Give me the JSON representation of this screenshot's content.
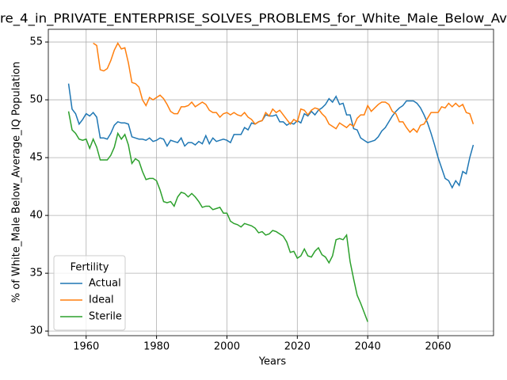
{
  "chart_data": {
    "type": "line",
    "title": "re_4_in_PRIVATE_ENTERPRISE_SOLVES_PROBLEMS_for_White_Male_Below_Av",
    "x_label": "Years",
    "y_label": "% of White_Male Below_Average_IQ Population",
    "x": [
      1955,
      1956,
      1957,
      1958,
      1959,
      1960,
      1961,
      1962,
      1963,
      1964,
      1965,
      1966,
      1967,
      1968,
      1969,
      1970,
      1971,
      1972,
      1973,
      1974,
      1975,
      1976,
      1977,
      1978,
      1979,
      1980,
      1981,
      1982,
      1983,
      1984,
      1985,
      1986,
      1987,
      1988,
      1989,
      1990,
      1991,
      1992,
      1993,
      1994,
      1995,
      1996,
      1997,
      1998,
      1999,
      2000,
      2001,
      2002,
      2003,
      2004,
      2005,
      2006,
      2007,
      2008,
      2009,
      2010,
      2011,
      2012,
      2013,
      2014,
      2015,
      2016,
      2017,
      2018,
      2019,
      2020,
      2021,
      2022,
      2023,
      2024,
      2025,
      2026,
      2027,
      2028,
      2029,
      2030,
      2031,
      2032,
      2033,
      2034,
      2035,
      2036,
      2037,
      2038,
      2039,
      2040,
      2041,
      2042,
      2043,
      2044,
      2045,
      2046,
      2047,
      2048,
      2049,
      2050,
      2051,
      2052,
      2053,
      2054,
      2055,
      2056,
      2057,
      2058,
      2059,
      2060,
      2061,
      2062,
      2063,
      2064,
      2065,
      2066,
      2067,
      2068,
      2069,
      2070
    ],
    "series": [
      {
        "name": "Actual",
        "color": "#1f77b4",
        "values": [
          51.4,
          49.2,
          48.8,
          47.9,
          48.3,
          48.8,
          48.6,
          48.9,
          48.5,
          46.7,
          46.7,
          46.6,
          47.1,
          47.8,
          48.1,
          48.0,
          48.0,
          47.9,
          46.8,
          46.7,
          46.6,
          46.6,
          46.5,
          46.7,
          46.4,
          46.5,
          46.7,
          46.6,
          46.0,
          46.5,
          46.4,
          46.3,
          46.7,
          46.0,
          46.3,
          46.3,
          46.1,
          46.4,
          46.2,
          46.9,
          46.2,
          46.7,
          46.4,
          46.5,
          46.6,
          46.5,
          46.3,
          47.0,
          47.0,
          47.0,
          47.6,
          47.4,
          48.0,
          47.9,
          48.1,
          48.2,
          48.7,
          48.6,
          48.6,
          48.7,
          48.1,
          48.1,
          47.8,
          48.0,
          47.9,
          48.2,
          48.0,
          48.8,
          48.6,
          49.0,
          48.7,
          49.1,
          49.3,
          49.6,
          50.1,
          49.8,
          50.3,
          49.6,
          49.7,
          48.7,
          48.7,
          47.5,
          47.4,
          46.7,
          46.5,
          46.3,
          46.4,
          46.5,
          46.8,
          47.3,
          47.6,
          48.1,
          48.6,
          49.0,
          49.3,
          49.5,
          49.9,
          49.9,
          49.9,
          49.7,
          49.3,
          48.7,
          48.0,
          47.1,
          46.1,
          45.0,
          44.1,
          43.2,
          43.0,
          42.4,
          43.0,
          42.6,
          43.8,
          43.6,
          45.0,
          46.1
        ]
      },
      {
        "name": "Ideal",
        "color": "#ff7f0e",
        "values": [
          null,
          null,
          null,
          null,
          null,
          null,
          null,
          54.9,
          54.7,
          52.6,
          52.5,
          52.7,
          53.4,
          54.3,
          54.9,
          54.4,
          54.5,
          53.2,
          51.5,
          51.4,
          51.1,
          50.0,
          49.5,
          50.2,
          50.0,
          50.2,
          50.4,
          50.1,
          49.6,
          49.0,
          48.8,
          48.8,
          49.4,
          49.4,
          49.5,
          49.8,
          49.4,
          49.6,
          49.8,
          49.6,
          49.1,
          48.9,
          48.9,
          48.5,
          48.8,
          48.9,
          48.7,
          48.9,
          48.7,
          48.6,
          48.9,
          48.5,
          48.3,
          47.9,
          48.1,
          48.2,
          48.9,
          48.6,
          49.2,
          48.9,
          49.1,
          48.7,
          48.3,
          47.9,
          48.3,
          48.1,
          49.2,
          49.1,
          48.7,
          49.1,
          49.3,
          49.2,
          48.8,
          48.5,
          47.9,
          47.7,
          47.5,
          48.0,
          47.8,
          47.6,
          47.9,
          47.7,
          48.4,
          48.7,
          48.7,
          49.5,
          49.0,
          49.3,
          49.6,
          49.8,
          49.8,
          49.6,
          49.0,
          48.8,
          48.1,
          48.1,
          47.6,
          47.2,
          47.5,
          47.2,
          47.8,
          47.9,
          48.4,
          48.9,
          48.9,
          48.9,
          49.4,
          49.3,
          49.7,
          49.4,
          49.7,
          49.4,
          49.6,
          48.9,
          48.8,
          47.9
        ]
      },
      {
        "name": "Sterile",
        "color": "#2ca02c",
        "values": [
          49.0,
          47.4,
          47.1,
          46.6,
          46.5,
          46.6,
          45.8,
          46.6,
          45.9,
          44.8,
          44.8,
          44.8,
          45.2,
          45.9,
          47.1,
          46.6,
          47.0,
          46.1,
          44.5,
          44.9,
          44.7,
          43.8,
          43.1,
          43.2,
          43.2,
          43.0,
          42.2,
          41.2,
          41.1,
          41.2,
          40.8,
          41.6,
          42.0,
          41.9,
          41.6,
          41.9,
          41.6,
          41.2,
          40.7,
          40.8,
          40.8,
          40.5,
          40.6,
          40.7,
          40.2,
          40.2,
          39.5,
          39.3,
          39.2,
          39.0,
          39.3,
          39.2,
          39.1,
          38.9,
          38.5,
          38.6,
          38.3,
          38.4,
          38.7,
          38.6,
          38.4,
          38.2,
          37.7,
          36.8,
          36.9,
          36.3,
          36.5,
          37.1,
          36.5,
          36.4,
          36.9,
          37.2,
          36.6,
          36.4,
          35.9,
          36.5,
          37.9,
          38.0,
          37.9,
          38.3,
          36.0,
          34.5,
          33.1,
          32.4,
          31.6,
          30.8,
          null,
          null,
          null,
          null,
          null,
          null,
          null,
          null,
          null,
          null,
          null,
          null,
          null,
          null,
          null,
          null,
          null,
          null,
          null,
          null,
          null,
          null,
          null,
          null,
          null,
          null,
          null,
          null,
          null,
          null
        ]
      }
    ],
    "xlim": [
      1949.25,
      2075.75
    ],
    "xticks": [
      1960,
      1980,
      2000,
      2020,
      2040,
      2060
    ],
    "ylim": [
      29.6,
      56.1
    ],
    "yticks": [
      30,
      35,
      40,
      45,
      50,
      55
    ],
    "grid": true,
    "legend_title": "Fertility",
    "legend_position": "lower left"
  }
}
